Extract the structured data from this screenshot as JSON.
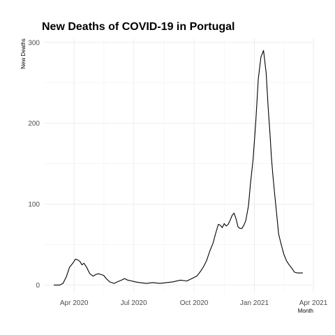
{
  "chart_data": {
    "type": "line",
    "title": "New Deaths of COVID-19 in Portugal",
    "xlabel": "Month",
    "ylabel": "New Deaths",
    "x_ticks": [
      {
        "date": "2020-04-01",
        "label": "Apr 2020"
      },
      {
        "date": "2020-07-01",
        "label": "Jul 2020"
      },
      {
        "date": "2020-10-01",
        "label": "Oct 2020"
      },
      {
        "date": "2021-01-01",
        "label": "Jan 2021"
      },
      {
        "date": "2021-04-01",
        "label": "Apr 2021"
      }
    ],
    "y_ticks": [
      0,
      100,
      200,
      300
    ],
    "xlim": [
      "2020-02-15",
      "2021-04-01"
    ],
    "ylim": [
      -10,
      305
    ],
    "grid": true,
    "legend": "none",
    "series": [
      {
        "x": [
          "2020-03-01",
          "2020-03-10",
          "2020-03-15",
          "2020-03-20",
          "2020-03-25",
          "2020-03-30",
          "2020-04-03",
          "2020-04-07",
          "2020-04-10",
          "2020-04-13",
          "2020-04-16",
          "2020-04-20",
          "2020-04-25",
          "2020-04-30",
          "2020-05-04",
          "2020-05-08",
          "2020-05-12",
          "2020-05-16",
          "2020-05-20",
          "2020-05-25",
          "2020-06-01",
          "2020-06-06",
          "2020-06-12",
          "2020-06-17",
          "2020-06-22",
          "2020-06-28",
          "2020-07-03",
          "2020-07-10",
          "2020-07-20",
          "2020-07-30",
          "2020-08-10",
          "2020-08-20",
          "2020-08-30",
          "2020-09-10",
          "2020-09-20",
          "2020-09-30",
          "2020-10-05",
          "2020-10-10",
          "2020-10-15",
          "2020-10-20",
          "2020-10-25",
          "2020-10-30",
          "2020-11-03",
          "2020-11-07",
          "2020-11-10",
          "2020-11-13",
          "2020-11-16",
          "2020-11-19",
          "2020-11-22",
          "2020-11-25",
          "2020-11-28",
          "2020-12-01",
          "2020-12-04",
          "2020-12-07",
          "2020-12-10",
          "2020-12-13",
          "2020-12-16",
          "2020-12-19",
          "2020-12-23",
          "2020-12-26",
          "2020-12-30",
          "2021-01-03",
          "2021-01-07",
          "2021-01-11",
          "2021-01-15",
          "2021-01-19",
          "2021-01-22",
          "2021-01-25",
          "2021-01-27",
          "2021-01-29",
          "2021-02-01",
          "2021-02-04",
          "2021-02-07",
          "2021-02-11",
          "2021-02-15",
          "2021-02-19",
          "2021-02-23",
          "2021-02-27",
          "2021-03-03",
          "2021-03-07",
          "2021-03-10",
          "2021-03-14",
          "2021-03-16"
        ],
        "y": [
          0,
          0,
          2,
          10,
          22,
          27,
          32,
          31,
          29,
          25,
          27,
          22,
          14,
          11,
          13,
          14,
          13,
          12,
          8,
          4,
          2,
          4,
          6,
          8,
          6,
          5,
          4,
          3,
          2,
          3,
          2,
          3,
          4,
          6,
          5,
          9,
          11,
          16,
          22,
          30,
          42,
          52,
          64,
          75,
          74,
          71,
          76,
          73,
          75,
          80,
          86,
          89,
          82,
          72,
          70,
          70,
          74,
          80,
          98,
          125,
          155,
          200,
          255,
          282,
          290,
          262,
          220,
          185,
          158,
          138,
          112,
          88,
          63,
          50,
          38,
          30,
          25,
          21,
          16,
          15,
          15,
          15,
          15
        ]
      }
    ]
  }
}
